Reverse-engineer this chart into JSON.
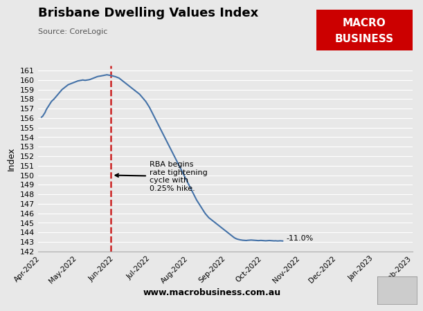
{
  "title": "Brisbane Dwelling Values Index",
  "source": "Source: CoreLogic",
  "ylabel": "Index",
  "website": "www.macrobusiness.com.au",
  "background_color": "#e8e8e8",
  "line_color": "#4472a8",
  "dashed_line_color": "#cc2222",
  "annotation_text": "RBA begins\nrate tightening\ncycle with\n0.25% hike.",
  "end_label": "-11.0%",
  "ylim": [
    142,
    161.5
  ],
  "yticks": [
    142,
    143,
    144,
    145,
    146,
    147,
    148,
    149,
    150,
    151,
    152,
    153,
    154,
    155,
    156,
    157,
    158,
    159,
    160,
    161
  ],
  "macro_box_color": "#cc0000",
  "macro_text_color": "#ffffff",
  "data_points": [
    156.1,
    156.2,
    156.4,
    156.6,
    156.9,
    157.1,
    157.3,
    157.5,
    157.7,
    157.85,
    157.95,
    158.1,
    158.25,
    158.4,
    158.55,
    158.7,
    158.85,
    159.0,
    159.1,
    159.2,
    159.3,
    159.4,
    159.5,
    159.55,
    159.6,
    159.65,
    159.7,
    159.75,
    159.8,
    159.85,
    159.9,
    159.92,
    159.95,
    159.97,
    160.0,
    159.98,
    159.96,
    159.98,
    160.0,
    160.02,
    160.05,
    160.1,
    160.15,
    160.2,
    160.25,
    160.3,
    160.35,
    160.38,
    160.4,
    160.42,
    160.45,
    160.47,
    160.5,
    160.52,
    160.55,
    160.52,
    160.5,
    160.48,
    160.45,
    160.42,
    160.38,
    160.35,
    160.3,
    160.25,
    160.2,
    160.1,
    160.0,
    159.9,
    159.8,
    159.7,
    159.6,
    159.5,
    159.4,
    159.3,
    159.2,
    159.1,
    159.0,
    158.9,
    158.8,
    158.7,
    158.6,
    158.5,
    158.35,
    158.2,
    158.05,
    157.9,
    157.75,
    157.55,
    157.35,
    157.15,
    156.9,
    156.65,
    156.4,
    156.15,
    155.9,
    155.65,
    155.4,
    155.15,
    154.9,
    154.65,
    154.4,
    154.15,
    153.9,
    153.65,
    153.4,
    153.15,
    152.9,
    152.65,
    152.4,
    152.15,
    151.9,
    151.65,
    151.4,
    151.15,
    150.9,
    150.65,
    150.4,
    150.15,
    149.9,
    149.65,
    149.4,
    149.15,
    148.9,
    148.65,
    148.4,
    148.15,
    147.9,
    147.65,
    147.4,
    147.2,
    147.0,
    146.8,
    146.6,
    146.4,
    146.2,
    146.0,
    145.85,
    145.7,
    145.55,
    145.45,
    145.35,
    145.25,
    145.15,
    145.05,
    144.95,
    144.85,
    144.75,
    144.65,
    144.55,
    144.45,
    144.35,
    144.25,
    144.15,
    144.05,
    143.95,
    143.85,
    143.75,
    143.65,
    143.55,
    143.45,
    143.38,
    143.32,
    143.28,
    143.25,
    143.22,
    143.2,
    143.18,
    143.17,
    143.16,
    143.15,
    143.17,
    143.18,
    143.19,
    143.2,
    143.19,
    143.18,
    143.17,
    143.16,
    143.15,
    143.14,
    143.15,
    143.16,
    143.15,
    143.14,
    143.13,
    143.12,
    143.13,
    143.14,
    143.15,
    143.14,
    143.13,
    143.12,
    143.11,
    143.12,
    143.11,
    143.1,
    143.11,
    143.12,
    143.11,
    143.1
  ],
  "dashed_line_index": 57,
  "xtick_labels": [
    "Apr-2022",
    "May-2022",
    "Jun-2022",
    "Jul-2022",
    "Aug-2022",
    "Sep-2022",
    "Oct-2022",
    "Nov-2022",
    "Dec-2022",
    "Jan-2023",
    "Feb-2023"
  ],
  "xtick_positions": [
    0,
    30,
    61,
    91,
    122,
    153,
    183,
    214,
    244,
    275,
    306
  ]
}
